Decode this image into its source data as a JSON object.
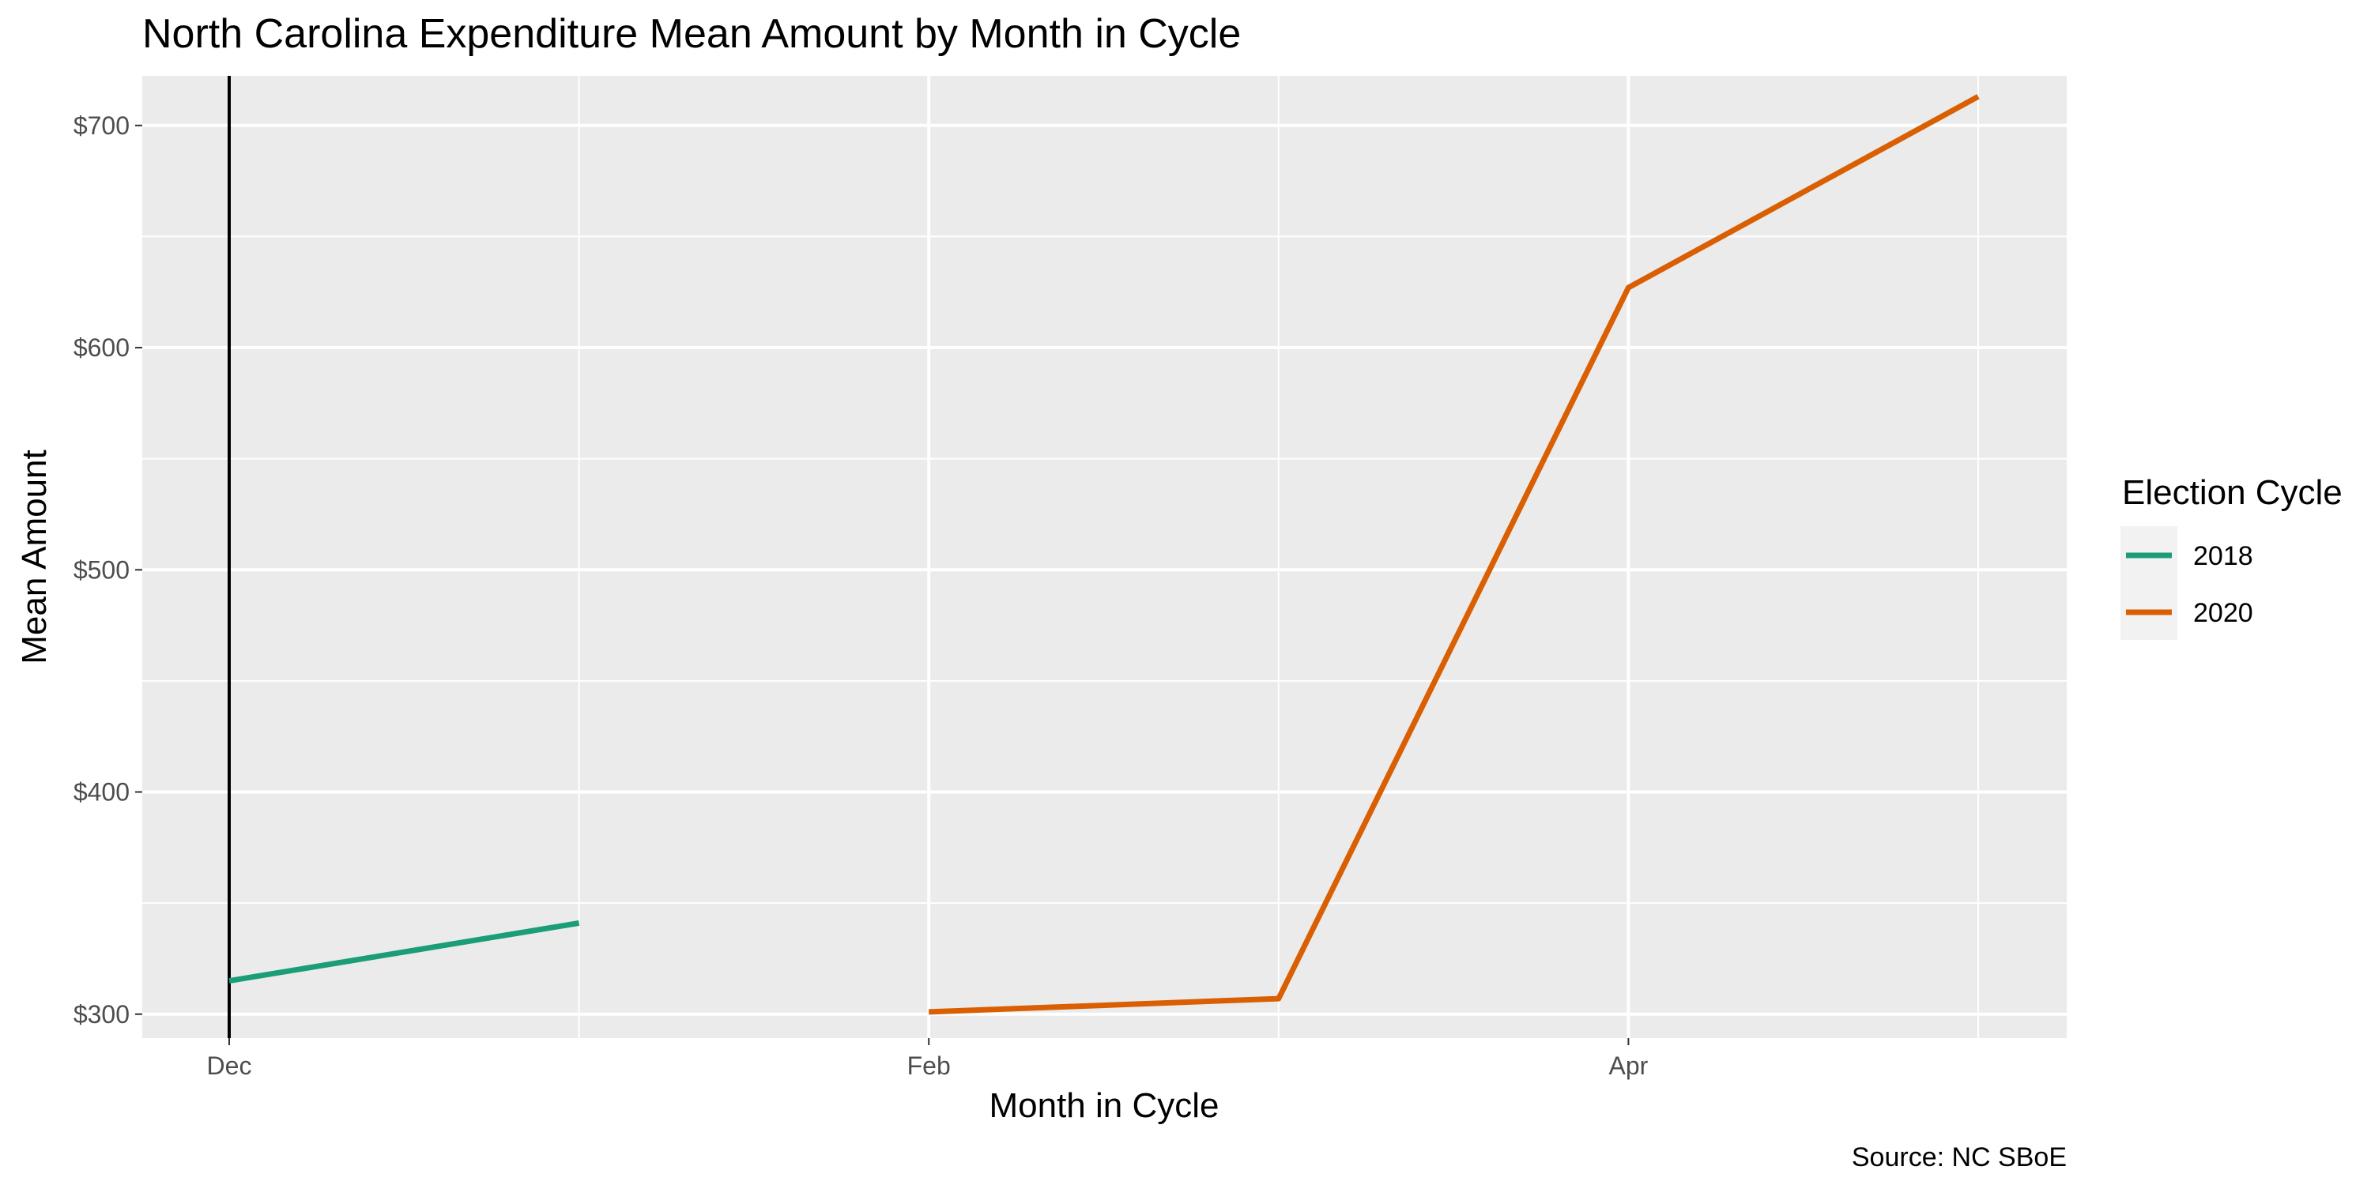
{
  "chart_data": {
    "type": "line",
    "title": "North Carolina Expenditure Mean Amount by Month in Cycle",
    "xlabel": "Month in Cycle",
    "ylabel": "Mean Amount",
    "caption": "Source: NC SBoE",
    "x_ticks": [
      "Dec",
      "Feb",
      "Apr"
    ],
    "x_months": [
      "Dec",
      "Jan",
      "Feb",
      "Mar",
      "Apr",
      "May"
    ],
    "x_range": [
      "Dec",
      "May"
    ],
    "y_ticks": [
      "$300",
      "$400",
      "$500",
      "$600",
      "$700"
    ],
    "ylim": [
      280,
      733
    ],
    "grid": true,
    "legend": {
      "title": "Election Cycle",
      "position": "right"
    },
    "series": [
      {
        "name": "2018",
        "color": "#1b9e77",
        "points": [
          {
            "x": "Dec",
            "y": 315
          },
          {
            "x": "Jan",
            "y": 341
          }
        ]
      },
      {
        "name": "2020",
        "color": "#d95f02",
        "points": [
          {
            "x": "Feb",
            "y": 301
          },
          {
            "x": "Mar",
            "y": 307
          },
          {
            "x": "Apr",
            "y": 627
          },
          {
            "x": "May",
            "y": 713
          }
        ]
      }
    ],
    "reference_line": {
      "x": "Dec",
      "color": "#000000"
    }
  }
}
